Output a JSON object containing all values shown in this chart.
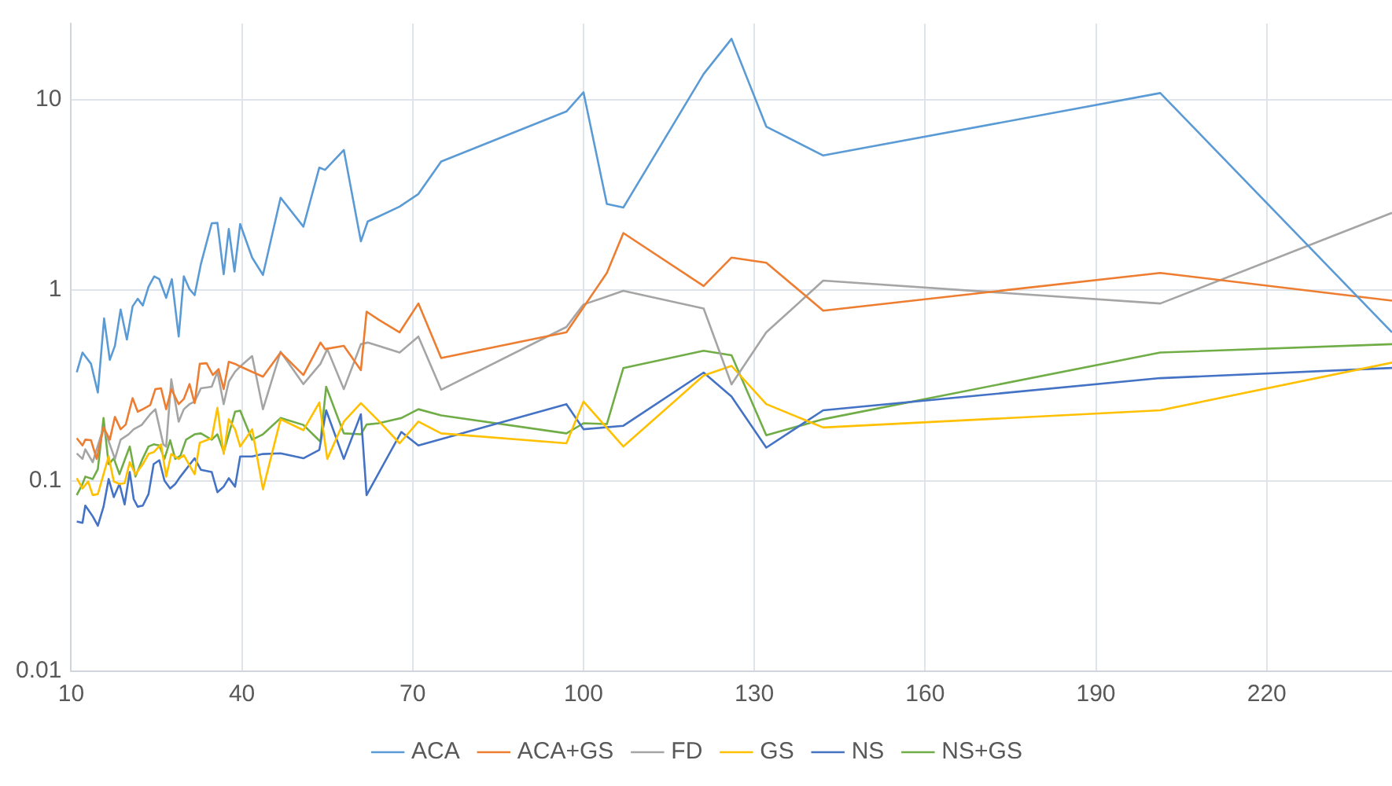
{
  "chart_data": {
    "type": "line",
    "log": "y",
    "grid": true,
    "legend": "bottom",
    "marker": "none",
    "line_style": "solid",
    "xlim": [
      10,
      242
    ],
    "xticks": [
      10,
      40,
      70,
      100,
      130,
      160,
      190,
      220
    ],
    "ylim": [
      0.01,
      25
    ],
    "yticks": [
      0.01,
      0.1,
      1,
      10
    ],
    "series": [
      {
        "name": "ACA",
        "color": "#5b9bd5",
        "x": [
          11,
          12,
          13.5,
          14.7,
          15.8,
          16.8,
          17.7,
          18.7,
          19.8,
          20.8,
          21.7,
          22.6,
          23.6,
          24.6,
          25.5,
          26.7,
          27.7,
          28.9,
          29.8,
          30.8,
          31.7,
          32.8,
          34.7,
          35.7,
          36.8,
          37.7,
          38.7,
          39.7,
          41.8,
          43.7,
          46.8,
          50.8,
          53.6,
          54.6,
          57.9,
          60.9,
          62.1,
          64,
          67.7,
          71,
          75,
          97,
          100,
          104.1,
          107,
          121.1,
          126,
          132.1,
          142.1,
          201.3,
          242
        ],
        "values": [
          0.37,
          0.47,
          0.41,
          0.29,
          0.71,
          0.43,
          0.51,
          0.79,
          0.55,
          0.82,
          0.9,
          0.83,
          1.04,
          1.18,
          1.14,
          0.91,
          1.14,
          0.57,
          1.18,
          1.01,
          0.94,
          1.37,
          2.24,
          2.25,
          1.21,
          2.09,
          1.25,
          2.22,
          1.48,
          1.2,
          3.05,
          2.15,
          4.39,
          4.27,
          5.43,
          1.8,
          2.29,
          2.43,
          2.74,
          3.19,
          4.72,
          8.65,
          10.9,
          2.83,
          2.71,
          13.6,
          20.8,
          7.2,
          5.08,
          10.8,
          0.6
        ]
      },
      {
        "name": "ACA+GS",
        "color": "#ed7d31",
        "x": [
          11,
          12,
          12.5,
          13.5,
          14.5,
          15.7,
          16.8,
          17.7,
          18.7,
          19.6,
          20.8,
          21.7,
          22.6,
          23.9,
          24.8,
          25.8,
          26.7,
          27.6,
          28.9,
          29.8,
          30.8,
          31.7,
          32.6,
          33.8,
          34.9,
          35.9,
          36.8,
          37.7,
          38.8,
          39.7,
          43.7,
          46.8,
          50.8,
          53.8,
          54.6,
          57.9,
          60.9,
          61.9,
          64,
          67.7,
          71,
          75,
          97,
          104.1,
          107,
          121.1,
          126,
          132.1,
          142.1,
          201.3,
          242
        ],
        "values": [
          0.167,
          0.153,
          0.164,
          0.163,
          0.13,
          0.19,
          0.164,
          0.216,
          0.186,
          0.197,
          0.271,
          0.23,
          0.237,
          0.249,
          0.302,
          0.305,
          0.237,
          0.302,
          0.252,
          0.268,
          0.321,
          0.255,
          0.41,
          0.413,
          0.358,
          0.385,
          0.302,
          0.42,
          0.41,
          0.397,
          0.351,
          0.47,
          0.358,
          0.53,
          0.49,
          0.51,
          0.38,
          0.77,
          0.7,
          0.6,
          0.85,
          0.44,
          0.6,
          1.23,
          1.99,
          1.05,
          1.48,
          1.39,
          0.78,
          1.23,
          0.88
        ]
      },
      {
        "name": "FD",
        "color": "#a5a5a5",
        "x": [
          11,
          12,
          12.5,
          13.8,
          15.7,
          16.8,
          17.7,
          18.7,
          20.1,
          21,
          22.4,
          23.9,
          24.8,
          26.2,
          26.7,
          27.6,
          28.9,
          29.8,
          30.8,
          31.7,
          32.8,
          34.7,
          35.7,
          36.8,
          37.7,
          38.8,
          39.7,
          41.8,
          43.7,
          46.8,
          50.8,
          53.8,
          55,
          57.9,
          60.9,
          62.1,
          64,
          67.7,
          71,
          75,
          97,
          100,
          107,
          121.1,
          126,
          132.1,
          142.1,
          201.3,
          242
        ],
        "values": [
          0.139,
          0.13,
          0.146,
          0.125,
          0.19,
          0.155,
          0.13,
          0.164,
          0.175,
          0.186,
          0.196,
          0.223,
          0.237,
          0.155,
          0.151,
          0.34,
          0.204,
          0.237,
          0.252,
          0.26,
          0.305,
          0.311,
          0.373,
          0.252,
          0.331,
          0.373,
          0.397,
          0.45,
          0.237,
          0.475,
          0.321,
          0.41,
          0.49,
          0.302,
          0.52,
          0.53,
          0.51,
          0.47,
          0.57,
          0.3,
          0.64,
          0.84,
          0.99,
          0.8,
          0.32,
          0.6,
          1.12,
          0.85,
          2.54
        ]
      },
      {
        "name": "GS",
        "color": "#ffc000",
        "x": [
          11,
          12,
          13,
          13.8,
          14.7,
          15.7,
          16.6,
          17.5,
          18.5,
          19.4,
          20.3,
          21.3,
          22.6,
          23.6,
          24.5,
          25.8,
          26.7,
          27.6,
          28.9,
          29.8,
          31.7,
          32.6,
          33.8,
          34.7,
          35.7,
          36.8,
          37.7,
          38.8,
          39.7,
          41.8,
          43.7,
          46.8,
          50.8,
          53.6,
          55,
          57.9,
          60.9,
          64,
          67.7,
          71,
          75,
          97,
          100,
          107,
          121.1,
          126,
          132.1,
          142.1,
          201.3,
          242
        ],
        "values": [
          0.103,
          0.091,
          0.099,
          0.084,
          0.085,
          0.108,
          0.134,
          0.099,
          0.096,
          0.097,
          0.125,
          0.108,
          0.122,
          0.138,
          0.141,
          0.155,
          0.105,
          0.138,
          0.13,
          0.136,
          0.108,
          0.158,
          0.163,
          0.167,
          0.241,
          0.138,
          0.21,
          0.186,
          0.151,
          0.186,
          0.09,
          0.21,
          0.184,
          0.257,
          0.13,
          0.204,
          0.255,
          0.206,
          0.157,
          0.204,
          0.177,
          0.157,
          0.26,
          0.151,
          0.356,
          0.4,
          0.252,
          0.19,
          0.234,
          0.416
        ]
      },
      {
        "name": "NS",
        "color": "#4472c4",
        "x": [
          11,
          12,
          12.5,
          13.8,
          14.7,
          15.7,
          16.6,
          17.5,
          18.5,
          19.4,
          20.3,
          21,
          21.7,
          22.6,
          23.6,
          24.5,
          25.5,
          26.4,
          27.4,
          28.3,
          29.2,
          31.7,
          32.8,
          34.7,
          35.7,
          36.8,
          37.7,
          38.8,
          39.7,
          41.8,
          43.7,
          46.8,
          50.8,
          53.6,
          54.8,
          57.9,
          60.9,
          61.9,
          68,
          71,
          97,
          100,
          107,
          121.1,
          126,
          132.1,
          142.1,
          201.3,
          242
        ],
        "values": [
          0.061,
          0.06,
          0.074,
          0.065,
          0.058,
          0.073,
          0.102,
          0.082,
          0.096,
          0.075,
          0.111,
          0.08,
          0.073,
          0.074,
          0.085,
          0.122,
          0.128,
          0.1,
          0.091,
          0.096,
          0.105,
          0.131,
          0.114,
          0.111,
          0.087,
          0.093,
          0.103,
          0.093,
          0.134,
          0.134,
          0.138,
          0.139,
          0.131,
          0.145,
          0.234,
          0.13,
          0.223,
          0.084,
          0.18,
          0.153,
          0.252,
          0.186,
          0.194,
          0.369,
          0.276,
          0.149,
          0.234,
          0.345,
          0.39
        ]
      },
      {
        "name": "NS+GS",
        "color": "#70ad47",
        "x": [
          11,
          12,
          12.5,
          13.8,
          14.7,
          15.7,
          16.6,
          17.5,
          18.5,
          19.4,
          20.3,
          21.3,
          22.6,
          23.6,
          24.5,
          25.5,
          26.4,
          27.4,
          28.3,
          29.2,
          30.2,
          31.7,
          32.8,
          34.7,
          35.7,
          36.8,
          37.7,
          38.8,
          39.7,
          41.8,
          43.7,
          46.8,
          50.8,
          53.8,
          54.8,
          57.9,
          60.9,
          61.9,
          64,
          68,
          71,
          75,
          97,
          100,
          104.1,
          107,
          121.1,
          126,
          132.1,
          142.1,
          201.3,
          242
        ],
        "values": [
          0.084,
          0.096,
          0.105,
          0.102,
          0.115,
          0.213,
          0.122,
          0.131,
          0.108,
          0.128,
          0.151,
          0.105,
          0.131,
          0.151,
          0.155,
          0.153,
          0.13,
          0.163,
          0.13,
          0.135,
          0.164,
          0.175,
          0.177,
          0.164,
          0.175,
          0.142,
          0.175,
          0.23,
          0.233,
          0.164,
          0.175,
          0.213,
          0.196,
          0.16,
          0.311,
          0.177,
          0.175,
          0.197,
          0.2,
          0.213,
          0.237,
          0.22,
          0.177,
          0.2,
          0.198,
          0.39,
          0.48,
          0.455,
          0.173,
          0.21,
          0.47,
          0.52
        ]
      }
    ]
  }
}
